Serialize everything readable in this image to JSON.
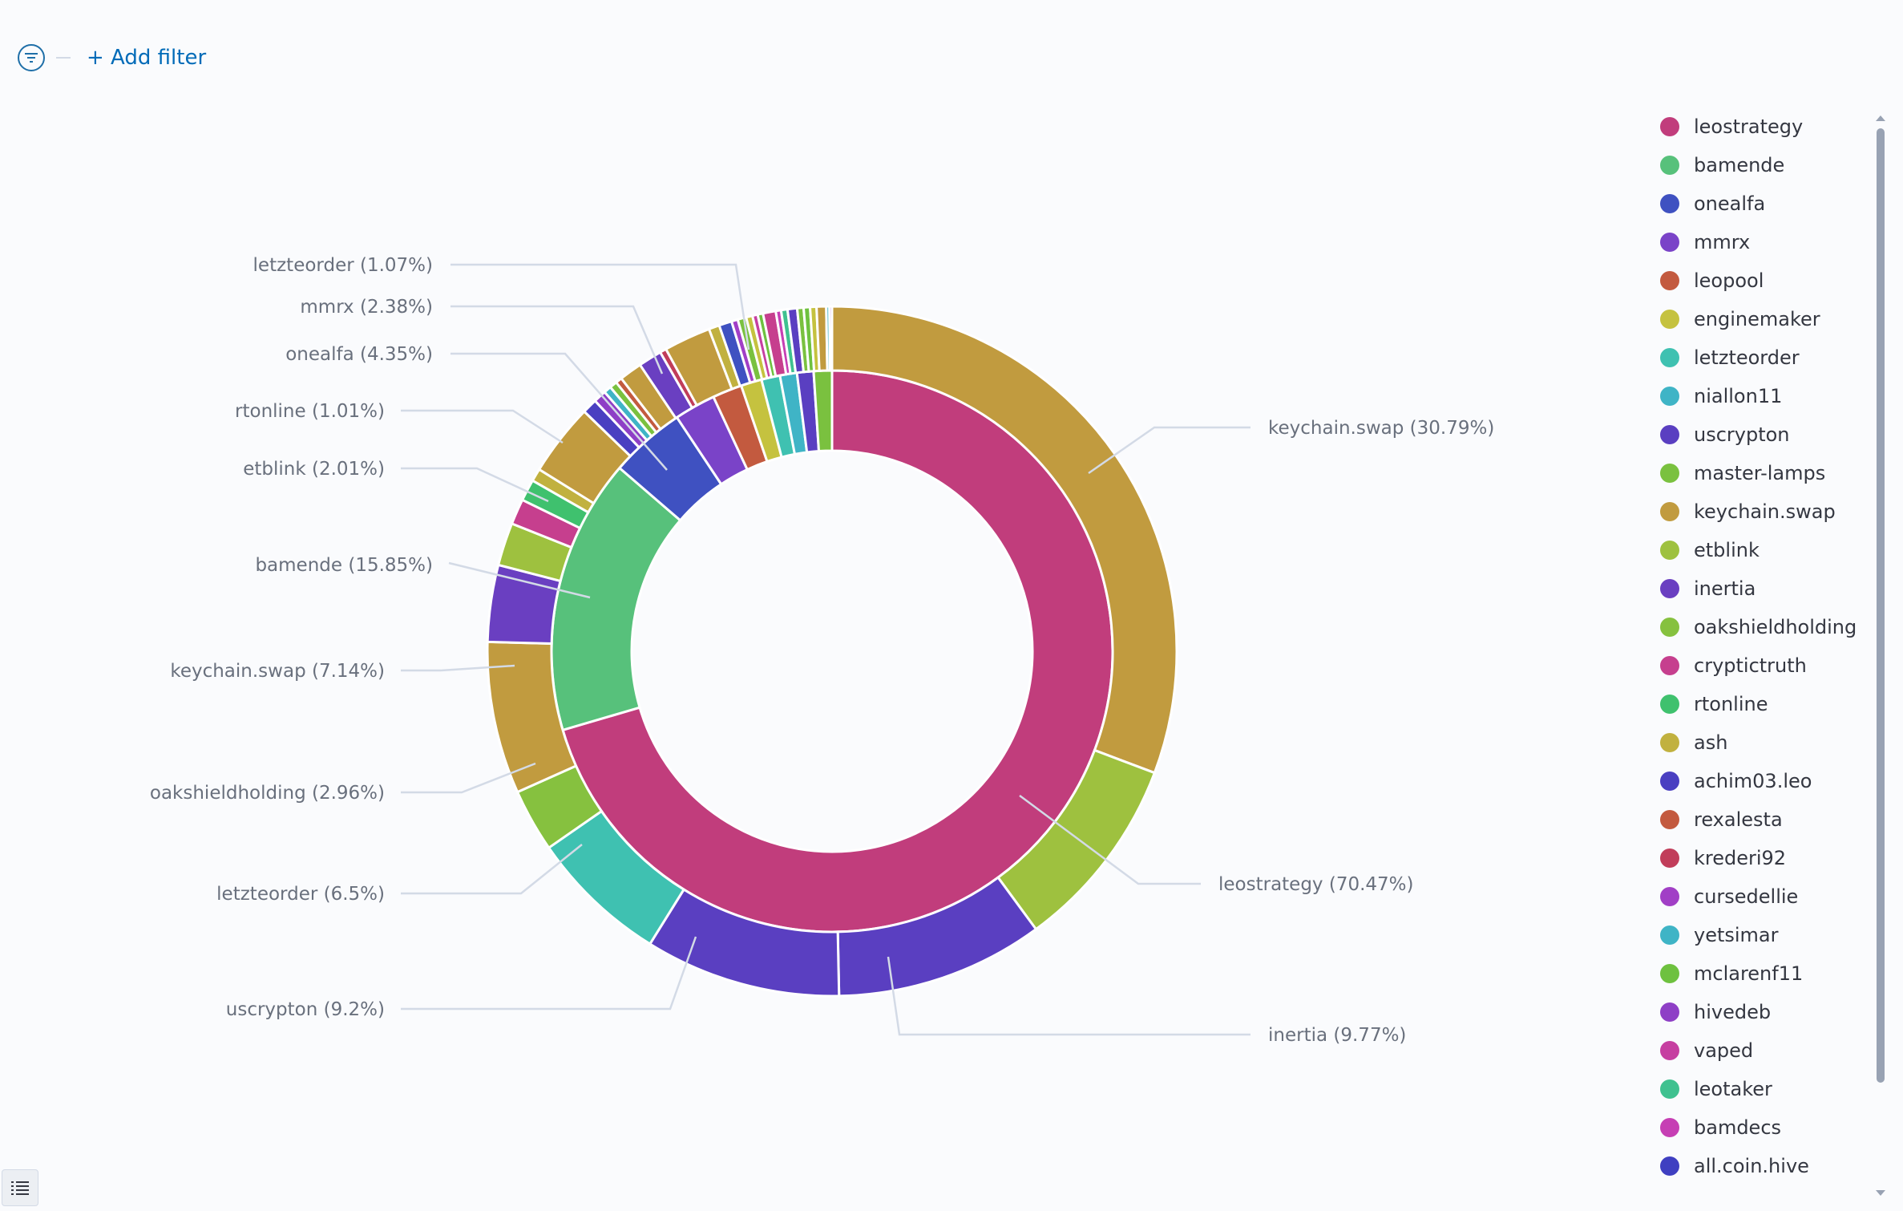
{
  "filter_bar": {
    "add_filter_label": "+ Add filter"
  },
  "chart_data": {
    "type": "pie",
    "donut": true,
    "title": "",
    "rings": [
      {
        "name": "inner",
        "slices": [
          {
            "label": "leostrategy",
            "percent": 70.47,
            "color": "#c13d7c"
          },
          {
            "label": "bamende",
            "percent": 15.85,
            "color": "#57c17b"
          },
          {
            "label": "onealfa",
            "percent": 4.35,
            "color": "#3f51c1"
          },
          {
            "label": "mmrx",
            "percent": 2.38,
            "color": "#7a43c8"
          },
          {
            "label": "leopool",
            "percent": 1.7,
            "color": "#c35a3f"
          },
          {
            "label": "enginemaker",
            "percent": 1.2,
            "color": "#c5c23f"
          },
          {
            "label": "letzteorder",
            "percent": 1.07,
            "color": "#3fc1b1"
          },
          {
            "label": "niallon11",
            "percent": 0.98,
            "color": "#3fb4c6"
          },
          {
            "label": "uscrypton",
            "percent": 0.95,
            "color": "#5a3fc1"
          },
          {
            "label": "master-lamps",
            "percent": 1.05,
            "color": "#7ac13f"
          }
        ]
      },
      {
        "name": "outer",
        "slices": [
          {
            "label": "keychain.swap",
            "percent": 30.79,
            "color": "#c19b3f"
          },
          {
            "label": "etblink",
            "percent": 9.2,
            "color": "#9ec13f"
          },
          {
            "label": "inertia",
            "percent": 9.77,
            "color": "#5a3fc1"
          },
          {
            "label": "uscrypton",
            "percent": 9.2,
            "color": "#5a3fc1"
          },
          {
            "label": "letzteorder",
            "percent": 6.5,
            "color": "#3fc1b1"
          },
          {
            "label": "oakshieldholding",
            "percent": 2.96,
            "color": "#86c13f"
          },
          {
            "label": "keychain.swap",
            "percent": 7.14,
            "color": "#c19b3f"
          },
          {
            "label": "inertia",
            "percent": 3.6,
            "color": "#6a3fc1"
          },
          {
            "label": "etblink",
            "percent": 2.01,
            "color": "#9ec13f"
          },
          {
            "label": "cryptictruth",
            "percent": 1.2,
            "color": "#c63f8e"
          },
          {
            "label": "rtonline",
            "percent": 1.01,
            "color": "#3fc16e"
          },
          {
            "label": "ash",
            "percent": 0.6,
            "color": "#c1b13f"
          },
          {
            "label": "keychain.swap",
            "percent": 3.4,
            "color": "#c19b3f"
          },
          {
            "label": "achim03.leo",
            "percent": 0.7,
            "color": "#4a3fc1"
          },
          {
            "label": "hivedeb",
            "percent": 0.6,
            "color": "#8e3fc6"
          },
          {
            "label": "yetsimar",
            "percent": 0.35,
            "color": "#3fb4c6"
          },
          {
            "label": "master-lamps",
            "percent": 0.35,
            "color": "#7ac13f"
          },
          {
            "label": "rexalesta",
            "percent": 0.3,
            "color": "#c35a3f"
          },
          {
            "label": "keychain.swap",
            "percent": 1.07,
            "color": "#c19b3f"
          },
          {
            "label": "mmrx",
            "percent": 1.1,
            "color": "#6a3fc1"
          },
          {
            "label": "krederi92",
            "percent": 0.3,
            "color": "#c13d5a"
          },
          {
            "label": "keychain.swap",
            "percent": 2.2,
            "color": "#c19b3f"
          },
          {
            "label": "ash",
            "percent": 0.5,
            "color": "#c1b13f"
          },
          {
            "label": "onealfa",
            "percent": 0.6,
            "color": "#3f51c1"
          },
          {
            "label": "cursedellie",
            "percent": 0.3,
            "color": "#a13fc6"
          },
          {
            "label": "master-lamps",
            "percent": 0.4,
            "color": "#7ac13f"
          },
          {
            "label": "enginemaker",
            "percent": 0.3,
            "color": "#c5c23f"
          },
          {
            "label": "vaped",
            "percent": 0.25,
            "color": "#c63fa1"
          },
          {
            "label": "mclarenf11",
            "percent": 0.25,
            "color": "#6ec13f"
          },
          {
            "label": "cryptictruth",
            "percent": 0.6,
            "color": "#c63f8e"
          },
          {
            "label": "bamdecs",
            "percent": 0.25,
            "color": "#c63fb4"
          },
          {
            "label": "leotaker",
            "percent": 0.3,
            "color": "#3fc190"
          },
          {
            "label": "inertia",
            "percent": 0.45,
            "color": "#5a3fc1"
          },
          {
            "label": "master-lamps",
            "percent": 0.3,
            "color": "#7ac13f"
          },
          {
            "label": "mclarenf11",
            "percent": 0.3,
            "color": "#6ec13f"
          },
          {
            "label": "enginemaker",
            "percent": 0.3,
            "color": "#c5c23f"
          },
          {
            "label": "keychain.swap",
            "percent": 0.45,
            "color": "#c19b3f"
          },
          {
            "label": "yetsimar",
            "percent": 0.15,
            "color": "#3fb4c6"
          },
          {
            "label": "cursedellie",
            "percent": 0.12,
            "color": "#a13fc6"
          }
        ]
      }
    ],
    "callouts": [
      {
        "text": "keychain.swap (30.79%)",
        "side": "right"
      },
      {
        "text": "leostrategy (70.47%)",
        "side": "right"
      },
      {
        "text": "inertia (9.77%)",
        "side": "right"
      },
      {
        "text": "uscrypton (9.2%)",
        "side": "left"
      },
      {
        "text": "letzteorder (6.5%)",
        "side": "left"
      },
      {
        "text": "oakshieldholding (2.96%)",
        "side": "left"
      },
      {
        "text": "keychain.swap (7.14%)",
        "side": "left"
      },
      {
        "text": "bamende (15.85%)",
        "side": "left"
      },
      {
        "text": "etblink (2.01%)",
        "side": "left"
      },
      {
        "text": "rtonline (1.01%)",
        "side": "left"
      },
      {
        "text": "onealfa (4.35%)",
        "side": "left"
      },
      {
        "text": "mmrx (2.38%)",
        "side": "left"
      },
      {
        "text": "letzteorder (1.07%)",
        "side": "left"
      }
    ],
    "legend": {
      "position": "right",
      "items": [
        {
          "label": "leostrategy",
          "color": "#c13d7c"
        },
        {
          "label": "bamende",
          "color": "#57c17b"
        },
        {
          "label": "onealfa",
          "color": "#3f51c1"
        },
        {
          "label": "mmrx",
          "color": "#7a43c8"
        },
        {
          "label": "leopool",
          "color": "#c35a3f"
        },
        {
          "label": "enginemaker",
          "color": "#c5c23f"
        },
        {
          "label": "letzteorder",
          "color": "#3fc1b1"
        },
        {
          "label": "niallon11",
          "color": "#3fb4c6"
        },
        {
          "label": "uscrypton",
          "color": "#5a3fc1"
        },
        {
          "label": "master-lamps",
          "color": "#7ac13f"
        },
        {
          "label": "keychain.swap",
          "color": "#c19b3f"
        },
        {
          "label": "etblink",
          "color": "#9ec13f"
        },
        {
          "label": "inertia",
          "color": "#6a3fc1"
        },
        {
          "label": "oakshieldholding",
          "color": "#86c13f"
        },
        {
          "label": "cryptictruth",
          "color": "#c63f8e"
        },
        {
          "label": "rtonline",
          "color": "#3fc16e"
        },
        {
          "label": "ash",
          "color": "#c1b13f"
        },
        {
          "label": "achim03.leo",
          "color": "#4a3fc1"
        },
        {
          "label": "rexalesta",
          "color": "#c35a3f"
        },
        {
          "label": "krederi92",
          "color": "#c13d5a"
        },
        {
          "label": "cursedellie",
          "color": "#a13fc6"
        },
        {
          "label": "yetsimar",
          "color": "#3fb4c6"
        },
        {
          "label": "mclarenf11",
          "color": "#6ec13f"
        },
        {
          "label": "hivedeb",
          "color": "#8e3fc6"
        },
        {
          "label": "vaped",
          "color": "#c63fa1"
        },
        {
          "label": "leotaker",
          "color": "#3fc190"
        },
        {
          "label": "bamdecs",
          "color": "#c63fb4"
        },
        {
          "label": "all.coin.hive",
          "color": "#3f3fc1"
        }
      ]
    }
  }
}
